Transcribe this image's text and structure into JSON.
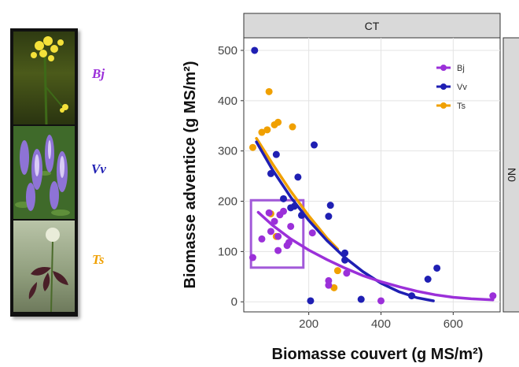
{
  "species": [
    {
      "code": "Bj",
      "color": "#9B30D9"
    },
    {
      "code": "Vv",
      "color": "#1F1FB3"
    },
    {
      "code": "Ts",
      "color": "#F0A000"
    }
  ],
  "facet": {
    "top": "CT",
    "right": "N0"
  },
  "chart_data": {
    "type": "scatter",
    "xlabel": "Biomasse couvert (g MS/m²)",
    "ylabel": "Biomasse adventice (g MS/m²)",
    "xlim": [
      20,
      730
    ],
    "ylim": [
      -20,
      525
    ],
    "x_ticks": [
      200,
      400,
      600
    ],
    "y_ticks": [
      0,
      100,
      200,
      300,
      400,
      500
    ],
    "grid": true,
    "legend_position": "top-right",
    "series": [
      {
        "name": "Bj",
        "color": "#9B30D9",
        "points": [
          [
            45,
            88
          ],
          [
            70,
            125
          ],
          [
            90,
            177
          ],
          [
            95,
            140
          ],
          [
            105,
            160
          ],
          [
            115,
            130
          ],
          [
            115,
            102
          ],
          [
            120,
            173
          ],
          [
            130,
            180
          ],
          [
            140,
            112
          ],
          [
            145,
            118
          ],
          [
            150,
            150
          ],
          [
            210,
            137
          ],
          [
            255,
            33
          ],
          [
            255,
            42
          ],
          [
            305,
            57
          ],
          [
            400,
            2
          ],
          [
            710,
            12
          ]
        ],
        "trend": [
          [
            60,
            178
          ],
          [
            100,
            152
          ],
          [
            150,
            125
          ],
          [
            200,
            103
          ],
          [
            250,
            84
          ],
          [
            300,
            67
          ],
          [
            350,
            52
          ],
          [
            400,
            40
          ],
          [
            450,
            30
          ],
          [
            500,
            21
          ],
          [
            550,
            14
          ],
          [
            600,
            9
          ],
          [
            650,
            6
          ],
          [
            710,
            4
          ]
        ]
      },
      {
        "name": "Vv",
        "color": "#1F1FB3",
        "points": [
          [
            50,
            500
          ],
          [
            95,
            255
          ],
          [
            110,
            293
          ],
          [
            130,
            205
          ],
          [
            150,
            187
          ],
          [
            160,
            190
          ],
          [
            170,
            248
          ],
          [
            180,
            172
          ],
          [
            215,
            312
          ],
          [
            205,
            2
          ],
          [
            255,
            170
          ],
          [
            260,
            192
          ],
          [
            300,
            97
          ],
          [
            300,
            83
          ],
          [
            345,
            5
          ],
          [
            485,
            12
          ],
          [
            530,
            45
          ],
          [
            555,
            67
          ]
        ],
        "trend": [
          [
            55,
            318
          ],
          [
            100,
            262
          ],
          [
            150,
            208
          ],
          [
            200,
            162
          ],
          [
            250,
            122
          ],
          [
            300,
            88
          ],
          [
            350,
            60
          ],
          [
            400,
            37
          ],
          [
            450,
            20
          ],
          [
            500,
            8
          ],
          [
            545,
            2
          ]
        ]
      },
      {
        "name": "Ts",
        "color": "#F0A000",
        "points": [
          [
            45,
            307
          ],
          [
            70,
            337
          ],
          [
            85,
            342
          ],
          [
            90,
            418
          ],
          [
            105,
            352
          ],
          [
            115,
            357
          ],
          [
            155,
            348
          ],
          [
            95,
            175
          ],
          [
            110,
            130
          ],
          [
            270,
            28
          ],
          [
            280,
            62
          ]
        ],
        "trend": [
          [
            55,
            325
          ],
          [
            100,
            274
          ],
          [
            150,
            220
          ],
          [
            200,
            171
          ],
          [
            250,
            127
          ],
          [
            280,
            105
          ]
        ]
      }
    ],
    "highlight_box": {
      "x": [
        40,
        185
      ],
      "y": [
        68,
        202
      ],
      "color": "#A259D9"
    }
  }
}
